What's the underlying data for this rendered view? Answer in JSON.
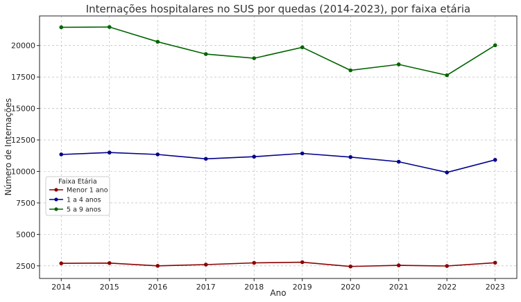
{
  "chart_data": {
    "type": "line",
    "title": "Internações hospitalares no SUS por quedas (2014-2023), por faixa etária",
    "xlabel": "Ano",
    "ylabel": "Número de Internações",
    "x": [
      2014,
      2015,
      2016,
      2017,
      2018,
      2019,
      2020,
      2021,
      2022,
      2023
    ],
    "x_tick_labels": [
      "2014",
      "2015",
      "2016",
      "2017",
      "2018",
      "2019",
      "2020",
      "2021",
      "2022",
      "2023"
    ],
    "y_ticks": [
      2500,
      5000,
      7500,
      10000,
      12500,
      15000,
      17500,
      20000
    ],
    "y_tick_labels": [
      "2500",
      "5000",
      "7500",
      "10000",
      "12500",
      "15000",
      "17500",
      "20000"
    ],
    "ylim": [
      1500,
      22350
    ],
    "xlim": [
      2013.55,
      2023.45
    ],
    "grid": true,
    "legend": {
      "title": "Faixa Etária",
      "position": "center-left"
    },
    "series": [
      {
        "name": "Menor 1 ano",
        "color": "#8b0000",
        "values": [
          2700,
          2720,
          2500,
          2600,
          2740,
          2790,
          2450,
          2540,
          2490,
          2750
        ]
      },
      {
        "name": "1 a 4 anos",
        "color": "#00008b",
        "values": [
          11350,
          11500,
          11350,
          11000,
          11170,
          11430,
          11140,
          10770,
          9920,
          10920
        ]
      },
      {
        "name": "5 a 9 anos",
        "color": "#006400",
        "values": [
          21450,
          21470,
          20300,
          19320,
          18990,
          19860,
          18030,
          18500,
          17640,
          20020
        ]
      }
    ]
  }
}
